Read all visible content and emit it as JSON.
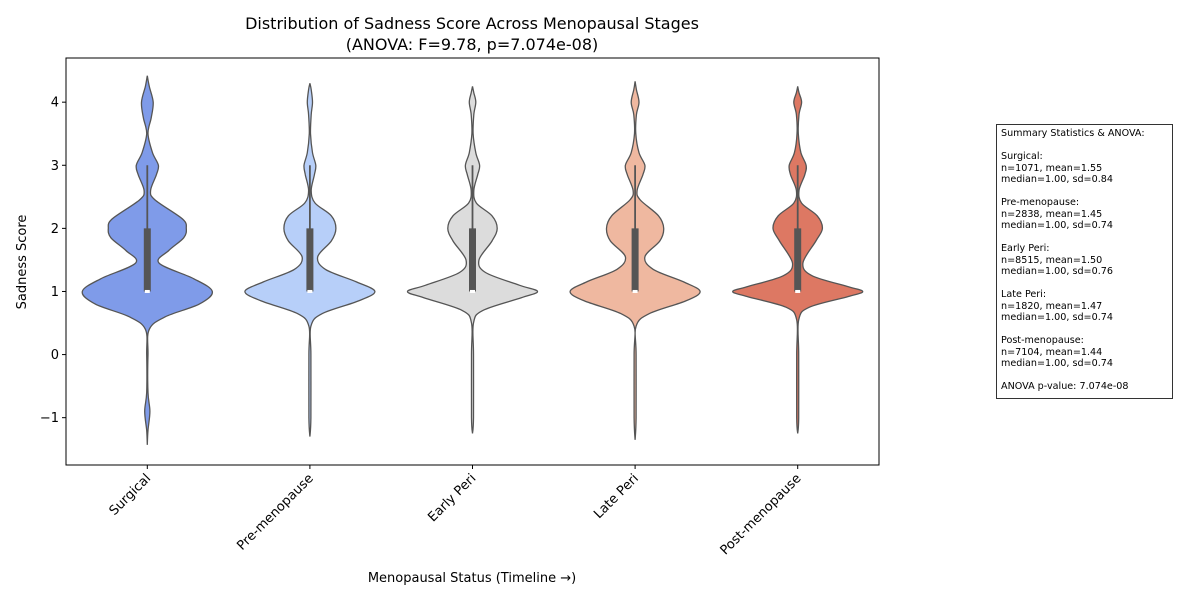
{
  "chart_data": {
    "type": "violin",
    "title_line1": "Distribution of Sadness Score Across Menopausal Stages",
    "title_line2": "(ANOVA: F=9.78, p=7.074e-08)",
    "xlabel": "Menopausal Status (Timeline →)",
    "ylabel": "Sadness Score",
    "ylim": [
      -1.75,
      4.7
    ],
    "yticks": [
      -1,
      0,
      1,
      2,
      3,
      4
    ],
    "ytick_labels": [
      "−1",
      "0",
      "1",
      "2",
      "3",
      "4"
    ],
    "grid": false,
    "legend": "none",
    "categories": [
      "Surgical",
      "Pre-menopause",
      "Early Peri",
      "Late Peri",
      "Post-menopause"
    ],
    "colors": [
      "#7f9be9",
      "#b7cff9",
      "#dcdcdc",
      "#efb8a0",
      "#dd7863"
    ],
    "violins": [
      {
        "name": "Surgical",
        "min": -1.43,
        "max": 4.42,
        "q1": 1.0,
        "median": 1.0,
        "q3": 2.0,
        "whisker_low": 1.0,
        "whisker_high": 3.0,
        "density": [
          [
            -1.43,
            0.0
          ],
          [
            -1.2,
            0.01
          ],
          [
            -0.9,
            0.04
          ],
          [
            -0.6,
            0.01
          ],
          [
            0.0,
            0.01
          ],
          [
            0.4,
            0.03
          ],
          [
            0.6,
            0.28
          ],
          [
            0.8,
            0.8
          ],
          [
            1.0,
            1.0
          ],
          [
            1.2,
            0.72
          ],
          [
            1.45,
            0.18
          ],
          [
            1.65,
            0.33
          ],
          [
            1.85,
            0.56
          ],
          [
            2.0,
            0.6
          ],
          [
            2.15,
            0.54
          ],
          [
            2.45,
            0.12
          ],
          [
            2.6,
            0.05
          ],
          [
            2.85,
            0.14
          ],
          [
            3.0,
            0.17
          ],
          [
            3.2,
            0.08
          ],
          [
            3.5,
            0.01
          ],
          [
            3.75,
            0.06
          ],
          [
            4.0,
            0.09
          ],
          [
            4.25,
            0.03
          ],
          [
            4.42,
            0.0
          ]
        ]
      },
      {
        "name": "Pre-menopause",
        "min": -1.3,
        "max": 4.3,
        "q1": 1.0,
        "median": 1.0,
        "q3": 2.0,
        "whisker_low": 1.0,
        "whisker_high": 3.0,
        "density": [
          [
            -1.3,
            0.0
          ],
          [
            -1.0,
            0.015
          ],
          [
            0.0,
            0.015
          ],
          [
            0.45,
            0.015
          ],
          [
            0.65,
            0.19
          ],
          [
            0.85,
            0.75
          ],
          [
            1.0,
            1.0
          ],
          [
            1.15,
            0.72
          ],
          [
            1.35,
            0.24
          ],
          [
            1.55,
            0.12
          ],
          [
            1.8,
            0.33
          ],
          [
            2.0,
            0.4
          ],
          [
            2.2,
            0.33
          ],
          [
            2.4,
            0.08
          ],
          [
            2.6,
            0.02
          ],
          [
            2.85,
            0.07
          ],
          [
            3.0,
            0.09
          ],
          [
            3.2,
            0.04
          ],
          [
            3.5,
            0.01
          ],
          [
            3.8,
            0.02
          ],
          [
            4.0,
            0.04
          ],
          [
            4.2,
            0.02
          ],
          [
            4.3,
            0.0
          ]
        ]
      },
      {
        "name": "Early Peri",
        "min": -1.25,
        "max": 4.25,
        "q1": 1.0,
        "median": 1.0,
        "q3": 2.0,
        "whisker_low": 1.0,
        "whisker_high": 3.0,
        "density": [
          [
            -1.25,
            0.0
          ],
          [
            -1.0,
            0.015
          ],
          [
            0.0,
            0.015
          ],
          [
            0.5,
            0.015
          ],
          [
            0.7,
            0.16
          ],
          [
            0.9,
            0.75
          ],
          [
            1.0,
            1.0
          ],
          [
            1.1,
            0.72
          ],
          [
            1.3,
            0.2
          ],
          [
            1.5,
            0.1
          ],
          [
            1.8,
            0.3
          ],
          [
            2.0,
            0.38
          ],
          [
            2.2,
            0.3
          ],
          [
            2.4,
            0.06
          ],
          [
            2.6,
            0.02
          ],
          [
            2.85,
            0.08
          ],
          [
            3.0,
            0.11
          ],
          [
            3.2,
            0.05
          ],
          [
            3.5,
            0.01
          ],
          [
            3.8,
            0.02
          ],
          [
            4.0,
            0.05
          ],
          [
            4.15,
            0.02
          ],
          [
            4.25,
            0.0
          ]
        ]
      },
      {
        "name": "Late Peri",
        "min": -1.35,
        "max": 4.33,
        "q1": 1.0,
        "median": 1.0,
        "q3": 2.0,
        "whisker_low": 1.0,
        "whisker_high": 3.0,
        "density": [
          [
            -1.35,
            0.0
          ],
          [
            -1.0,
            0.015
          ],
          [
            0.0,
            0.015
          ],
          [
            0.45,
            0.015
          ],
          [
            0.65,
            0.22
          ],
          [
            0.85,
            0.78
          ],
          [
            1.0,
            1.0
          ],
          [
            1.15,
            0.75
          ],
          [
            1.35,
            0.28
          ],
          [
            1.55,
            0.15
          ],
          [
            1.8,
            0.38
          ],
          [
            2.0,
            0.44
          ],
          [
            2.2,
            0.36
          ],
          [
            2.45,
            0.08
          ],
          [
            2.6,
            0.03
          ],
          [
            2.85,
            0.12
          ],
          [
            3.0,
            0.15
          ],
          [
            3.2,
            0.06
          ],
          [
            3.5,
            0.01
          ],
          [
            3.8,
            0.02
          ],
          [
            4.0,
            0.06
          ],
          [
            4.2,
            0.02
          ],
          [
            4.33,
            0.0
          ]
        ]
      },
      {
        "name": "Post-menopause",
        "min": -1.25,
        "max": 4.25,
        "q1": 1.0,
        "median": 1.0,
        "q3": 2.0,
        "whisker_low": 1.0,
        "whisker_high": 3.0,
        "density": [
          [
            -1.25,
            0.0
          ],
          [
            -1.0,
            0.015
          ],
          [
            0.0,
            0.015
          ],
          [
            0.55,
            0.015
          ],
          [
            0.75,
            0.18
          ],
          [
            0.92,
            0.78
          ],
          [
            1.0,
            1.0
          ],
          [
            1.08,
            0.76
          ],
          [
            1.25,
            0.22
          ],
          [
            1.45,
            0.08
          ],
          [
            1.8,
            0.28
          ],
          [
            2.0,
            0.38
          ],
          [
            2.2,
            0.3
          ],
          [
            2.4,
            0.06
          ],
          [
            2.6,
            0.02
          ],
          [
            2.85,
            0.11
          ],
          [
            3.0,
            0.13
          ],
          [
            3.2,
            0.05
          ],
          [
            3.5,
            0.01
          ],
          [
            3.8,
            0.02
          ],
          [
            4.0,
            0.06
          ],
          [
            4.15,
            0.02
          ],
          [
            4.25,
            0.0
          ]
        ]
      }
    ]
  },
  "summary_box": {
    "header": "Summary Statistics & ANOVA:",
    "groups": [
      {
        "name": "Surgical:",
        "line1": "n=1071, mean=1.55",
        "line2": "median=1.00, sd=0.84"
      },
      {
        "name": "Pre-menopause:",
        "line1": "n=2838, mean=1.45",
        "line2": "median=1.00, sd=0.74"
      },
      {
        "name": "Early Peri:",
        "line1": "n=8515, mean=1.50",
        "line2": "median=1.00, sd=0.76"
      },
      {
        "name": "Late Peri:",
        "line1": "n=1820, mean=1.47",
        "line2": "median=1.00, sd=0.74"
      },
      {
        "name": "Post-menopause:",
        "line1": "n=7104, mean=1.44",
        "line2": "median=1.00, sd=0.74"
      }
    ],
    "footer": "ANOVA p-value: 7.074e-08"
  }
}
